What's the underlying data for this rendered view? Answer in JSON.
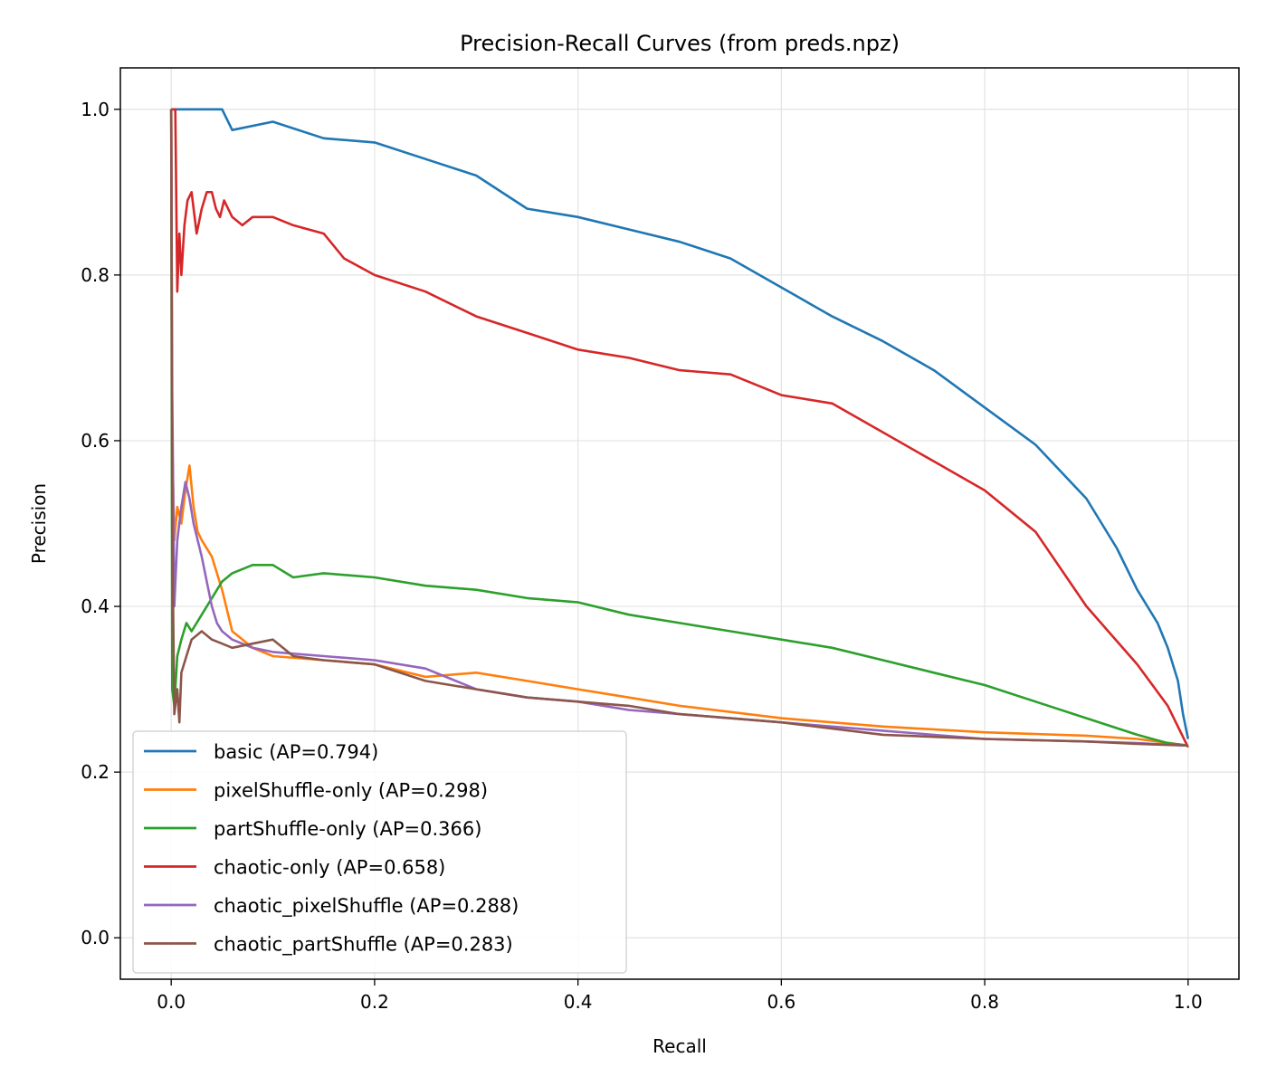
{
  "chart_data": {
    "type": "line",
    "title": "Precision-Recall Curves (from preds.npz)",
    "xlabel": "Recall",
    "ylabel": "Precision",
    "xlim": [
      -0.05,
      1.05
    ],
    "ylim": [
      -0.05,
      1.05
    ],
    "xticks": [
      0.0,
      0.2,
      0.4,
      0.6,
      0.8,
      1.0
    ],
    "xtick_labels": [
      "0.0",
      "0.2",
      "0.4",
      "0.6",
      "0.8",
      "1.0"
    ],
    "yticks": [
      0.0,
      0.2,
      0.4,
      0.6,
      0.8,
      1.0
    ],
    "ytick_labels": [
      "0.0",
      "0.2",
      "0.4",
      "0.6",
      "0.8",
      "1.0"
    ],
    "grid": true,
    "legend_position": "lower-left",
    "series": [
      {
        "name": "basic (AP=0.794)",
        "color": "#1f77b4",
        "x": [
          0,
          0.002,
          0.05,
          0.06,
          0.1,
          0.15,
          0.2,
          0.25,
          0.3,
          0.35,
          0.4,
          0.45,
          0.5,
          0.55,
          0.6,
          0.65,
          0.7,
          0.75,
          0.8,
          0.85,
          0.9,
          0.93,
          0.95,
          0.97,
          0.98,
          0.99,
          0.995,
          1.0
        ],
        "y": [
          1.0,
          1.0,
          1.0,
          0.975,
          0.985,
          0.965,
          0.96,
          0.94,
          0.92,
          0.88,
          0.87,
          0.855,
          0.84,
          0.82,
          0.785,
          0.75,
          0.72,
          0.685,
          0.64,
          0.595,
          0.53,
          0.47,
          0.42,
          0.38,
          0.35,
          0.31,
          0.27,
          0.24
        ]
      },
      {
        "name": "pixelShuffle-only (AP=0.298)",
        "color": "#ff7f0e",
        "x": [
          0,
          0.001,
          0.003,
          0.006,
          0.01,
          0.014,
          0.018,
          0.022,
          0.026,
          0.03,
          0.04,
          0.05,
          0.06,
          0.08,
          0.1,
          0.15,
          0.2,
          0.25,
          0.3,
          0.35,
          0.4,
          0.45,
          0.5,
          0.6,
          0.7,
          0.8,
          0.9,
          0.95,
          1.0
        ],
        "y": [
          1.0,
          0.6,
          0.48,
          0.52,
          0.5,
          0.54,
          0.57,
          0.52,
          0.49,
          0.48,
          0.46,
          0.42,
          0.37,
          0.35,
          0.34,
          0.335,
          0.33,
          0.315,
          0.32,
          0.31,
          0.3,
          0.29,
          0.28,
          0.265,
          0.255,
          0.248,
          0.244,
          0.24,
          0.232
        ]
      },
      {
        "name": "partShuffle-only (AP=0.366)",
        "color": "#2ca02c",
        "x": [
          0,
          0.001,
          0.003,
          0.006,
          0.01,
          0.015,
          0.02,
          0.03,
          0.04,
          0.05,
          0.06,
          0.08,
          0.1,
          0.12,
          0.15,
          0.2,
          0.25,
          0.3,
          0.35,
          0.4,
          0.45,
          0.5,
          0.55,
          0.6,
          0.65,
          0.7,
          0.75,
          0.8,
          0.85,
          0.9,
          0.95,
          0.98,
          1.0
        ],
        "y": [
          1.0,
          0.3,
          0.28,
          0.34,
          0.36,
          0.38,
          0.37,
          0.39,
          0.41,
          0.43,
          0.44,
          0.45,
          0.45,
          0.435,
          0.44,
          0.435,
          0.425,
          0.42,
          0.41,
          0.405,
          0.39,
          0.38,
          0.37,
          0.36,
          0.35,
          0.335,
          0.32,
          0.305,
          0.285,
          0.265,
          0.245,
          0.235,
          0.232
        ]
      },
      {
        "name": "chaotic-only (AP=0.658)",
        "color": "#d62728",
        "x": [
          0,
          0.004,
          0.006,
          0.008,
          0.01,
          0.013,
          0.016,
          0.02,
          0.025,
          0.03,
          0.035,
          0.04,
          0.044,
          0.048,
          0.052,
          0.06,
          0.07,
          0.08,
          0.1,
          0.12,
          0.15,
          0.17,
          0.2,
          0.25,
          0.3,
          0.35,
          0.4,
          0.45,
          0.5,
          0.55,
          0.6,
          0.65,
          0.7,
          0.75,
          0.8,
          0.85,
          0.9,
          0.95,
          0.98,
          1.0
        ],
        "y": [
          1.0,
          1.0,
          0.78,
          0.85,
          0.8,
          0.86,
          0.89,
          0.9,
          0.85,
          0.88,
          0.9,
          0.9,
          0.88,
          0.87,
          0.89,
          0.87,
          0.86,
          0.87,
          0.87,
          0.86,
          0.85,
          0.82,
          0.8,
          0.78,
          0.75,
          0.73,
          0.71,
          0.7,
          0.685,
          0.68,
          0.655,
          0.645,
          0.61,
          0.575,
          0.54,
          0.49,
          0.4,
          0.33,
          0.28,
          0.23
        ]
      },
      {
        "name": "chaotic_pixelShuffle (AP=0.288)",
        "color": "#9467bd",
        "x": [
          0,
          0.001,
          0.003,
          0.006,
          0.01,
          0.014,
          0.018,
          0.022,
          0.026,
          0.03,
          0.035,
          0.04,
          0.045,
          0.05,
          0.06,
          0.08,
          0.1,
          0.15,
          0.2,
          0.25,
          0.3,
          0.35,
          0.4,
          0.45,
          0.5,
          0.6,
          0.7,
          0.8,
          0.9,
          0.95,
          1.0
        ],
        "y": [
          1.0,
          0.66,
          0.4,
          0.48,
          0.52,
          0.55,
          0.53,
          0.5,
          0.48,
          0.46,
          0.43,
          0.4,
          0.38,
          0.37,
          0.36,
          0.35,
          0.345,
          0.34,
          0.335,
          0.325,
          0.3,
          0.29,
          0.285,
          0.275,
          0.27,
          0.26,
          0.25,
          0.24,
          0.237,
          0.235,
          0.232
        ]
      },
      {
        "name": "chaotic_partShuffle (AP=0.283)",
        "color": "#8c564b",
        "x": [
          0,
          0.001,
          0.003,
          0.006,
          0.008,
          0.01,
          0.015,
          0.02,
          0.03,
          0.04,
          0.05,
          0.06,
          0.08,
          0.1,
          0.12,
          0.15,
          0.2,
          0.25,
          0.3,
          0.35,
          0.4,
          0.45,
          0.5,
          0.6,
          0.7,
          0.8,
          0.9,
          0.95,
          1.0
        ],
        "y": [
          1.0,
          0.5,
          0.27,
          0.3,
          0.26,
          0.32,
          0.34,
          0.36,
          0.37,
          0.36,
          0.355,
          0.35,
          0.355,
          0.36,
          0.34,
          0.335,
          0.33,
          0.31,
          0.3,
          0.29,
          0.285,
          0.28,
          0.27,
          0.26,
          0.245,
          0.24,
          0.237,
          0.234,
          0.232
        ]
      }
    ]
  }
}
